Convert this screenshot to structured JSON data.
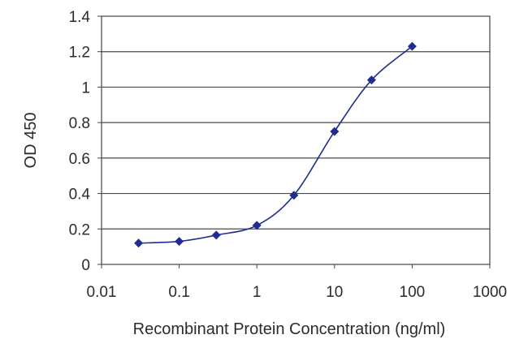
{
  "chart_data": {
    "type": "scatter",
    "title": "",
    "xlabel": "Recombinant Protein Concentration (ng/ml)",
    "ylabel": "OD 450",
    "xscale": "log",
    "xlim": [
      0.01,
      1000
    ],
    "ylim": [
      0,
      1.4
    ],
    "x_ticks": [
      0.01,
      0.1,
      1,
      10,
      100,
      1000
    ],
    "x_tick_labels": [
      "0.01",
      "0.1",
      "1",
      "10",
      "100",
      "1000"
    ],
    "y_ticks": [
      0,
      0.2,
      0.4,
      0.6,
      0.8,
      1.0,
      1.2,
      1.4
    ],
    "y_tick_labels": [
      "0",
      "0.2",
      "0.4",
      "0.6",
      "0.8",
      "1",
      "1.2",
      "1.4"
    ],
    "grid": "horizontal",
    "legend": "none",
    "series": [
      {
        "x": [
          0.03,
          0.1,
          0.3,
          1,
          3,
          10,
          30,
          100
        ],
        "y": [
          0.12,
          0.13,
          0.165,
          0.22,
          0.39,
          0.75,
          1.04,
          1.23
        ],
        "marker": "diamond",
        "fit_line": "smooth"
      }
    ],
    "colors": {
      "series": "#1f2d8f",
      "grid": "#4a4a4a",
      "axis": "#444444"
    }
  }
}
